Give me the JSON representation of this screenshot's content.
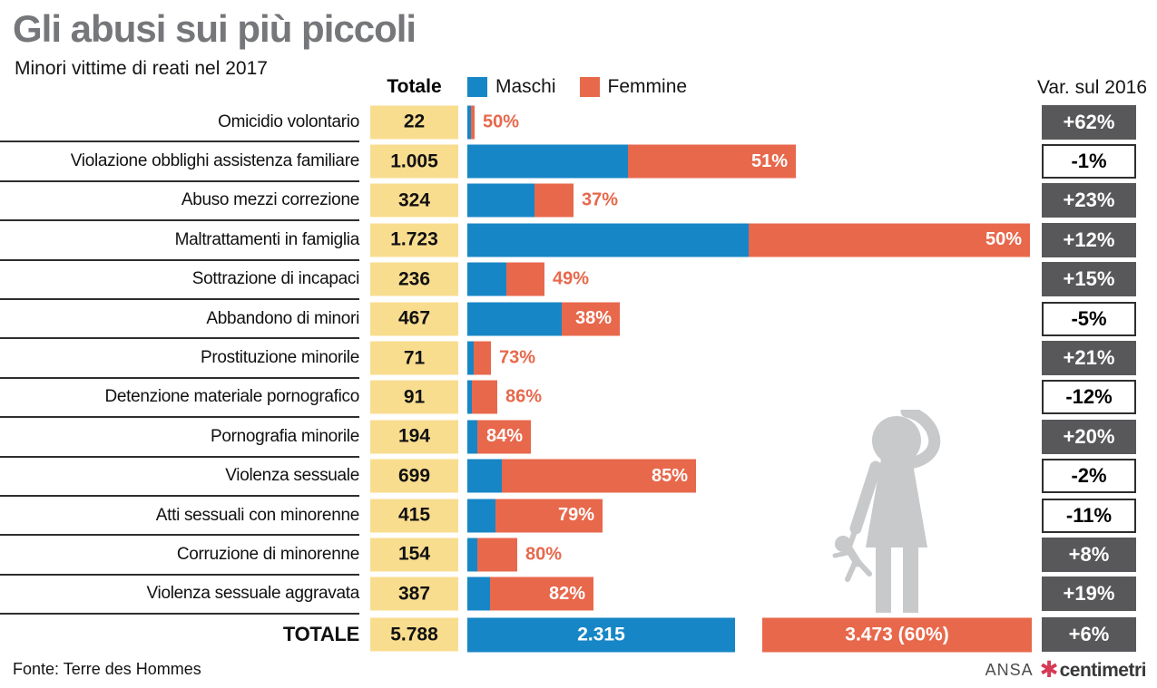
{
  "title": "Gli abusi sui più piccoli",
  "subtitle": "Minori vittime di reati nel 2017",
  "header": {
    "totale_column": "Totale",
    "legend_male": "Maschi",
    "legend_female": "Femmine",
    "variation_column": "Var. sul 2016"
  },
  "rows": [
    {
      "label": "Omicidio volontario",
      "total": "22",
      "value": 22,
      "female_pct": 50,
      "pct_label": "50%",
      "pct_inside": false,
      "variation": "+62%",
      "var_style": "dark"
    },
    {
      "label": "Violazione obblighi assistenza familiare",
      "total": "1.005",
      "value": 1005,
      "female_pct": 51,
      "pct_label": "51%",
      "pct_inside": true,
      "variation": "-1%",
      "var_style": "light"
    },
    {
      "label": "Abuso mezzi correzione",
      "total": "324",
      "value": 324,
      "female_pct": 37,
      "pct_label": "37%",
      "pct_inside": false,
      "variation": "+23%",
      "var_style": "dark"
    },
    {
      "label": "Maltrattamenti in famiglia",
      "total": "1.723",
      "value": 1723,
      "female_pct": 50,
      "pct_label": "50%",
      "pct_inside": true,
      "variation": "+12%",
      "var_style": "dark"
    },
    {
      "label": "Sottrazione di incapaci",
      "total": "236",
      "value": 236,
      "female_pct": 49,
      "pct_label": "49%",
      "pct_inside": false,
      "variation": "+15%",
      "var_style": "dark"
    },
    {
      "label": "Abbandono di minori",
      "total": "467",
      "value": 467,
      "female_pct": 38,
      "pct_label": "38%",
      "pct_inside": true,
      "variation": "-5%",
      "var_style": "light"
    },
    {
      "label": "Prostituzione minorile",
      "total": "71",
      "value": 71,
      "female_pct": 73,
      "pct_label": "73%",
      "pct_inside": false,
      "variation": "+21%",
      "var_style": "dark"
    },
    {
      "label": "Detenzione materiale pornografico",
      "total": "91",
      "value": 91,
      "female_pct": 86,
      "pct_label": "86%",
      "pct_inside": false,
      "variation": "-12%",
      "var_style": "light"
    },
    {
      "label": "Pornografia minorile",
      "total": "194",
      "value": 194,
      "female_pct": 84,
      "pct_label": "84%",
      "pct_inside": true,
      "variation": "+20%",
      "var_style": "dark"
    },
    {
      "label": "Violenza sessuale",
      "total": "699",
      "value": 699,
      "female_pct": 85,
      "pct_label": "85%",
      "pct_inside": true,
      "variation": "-2%",
      "var_style": "light"
    },
    {
      "label": "Atti sessuali con minorenne",
      "total": "415",
      "value": 415,
      "female_pct": 79,
      "pct_label": "79%",
      "pct_inside": true,
      "variation": "-11%",
      "var_style": "light"
    },
    {
      "label": "Corruzione di minorenne",
      "total": "154",
      "value": 154,
      "female_pct": 80,
      "pct_label": "80%",
      "pct_inside": false,
      "variation": "+8%",
      "var_style": "dark"
    },
    {
      "label": "Violenza sessuale aggravata",
      "total": "387",
      "value": 387,
      "female_pct": 82,
      "pct_label": "82%",
      "pct_inside": true,
      "variation": "+19%",
      "var_style": "dark"
    }
  ],
  "total_row": {
    "label": "TOTALE",
    "total": "5.788",
    "male_label": "2.315",
    "female_label": "3.473 (60%)",
    "variation": "+6%",
    "var_style": "dark"
  },
  "footer": {
    "source": "Fonte: Terre des Hommes",
    "credit_ansa": "ANSA",
    "credit_mark": "✱",
    "credit_brand": "centimetri"
  },
  "colors": {
    "blue": "#1786c6",
    "orange": "#e8684c",
    "yellow": "#f9dd8f",
    "darkbox": "#58585a",
    "line": "#2e2e2e",
    "title_gray": "#76777a",
    "silhouette": "#c8c9cb",
    "mark": "#d63a55"
  },
  "chart_data": {
    "type": "bar",
    "subtype": "horizontal-stacked",
    "title": "Gli abusi sui più piccoli",
    "subtitle": "Minori vittime di reati nel 2017",
    "legend": [
      "Maschi",
      "Femmine"
    ],
    "legend_position": "top",
    "categories": [
      "Omicidio volontario",
      "Violazione obblighi assistenza familiare",
      "Abuso mezzi correzione",
      "Maltrattamenti in famiglia",
      "Sottrazione di incapaci",
      "Abbandono di minori",
      "Prostituzione minorile",
      "Detenzione materiale pornografico",
      "Pornografia minorile",
      "Violenza sessuale",
      "Atti sessuali con minorenne",
      "Corruzione di minorenne",
      "Violenza sessuale aggravata"
    ],
    "totals": [
      22,
      1005,
      324,
      1723,
      236,
      467,
      71,
      91,
      194,
      699,
      415,
      154,
      387
    ],
    "female_pct": [
      50,
      51,
      37,
      50,
      49,
      38,
      73,
      86,
      84,
      85,
      79,
      80,
      82
    ],
    "variation_vs_2016_pct": [
      62,
      -1,
      23,
      12,
      15,
      -5,
      21,
      -12,
      20,
      -2,
      -11,
      8,
      19
    ],
    "grand_total": 5788,
    "total_maschi": 2315,
    "total_femmine": 3473,
    "total_femmine_pct": 60,
    "total_variation_vs_2016_pct": 6,
    "source": "Terre des Hommes",
    "grid": false
  }
}
